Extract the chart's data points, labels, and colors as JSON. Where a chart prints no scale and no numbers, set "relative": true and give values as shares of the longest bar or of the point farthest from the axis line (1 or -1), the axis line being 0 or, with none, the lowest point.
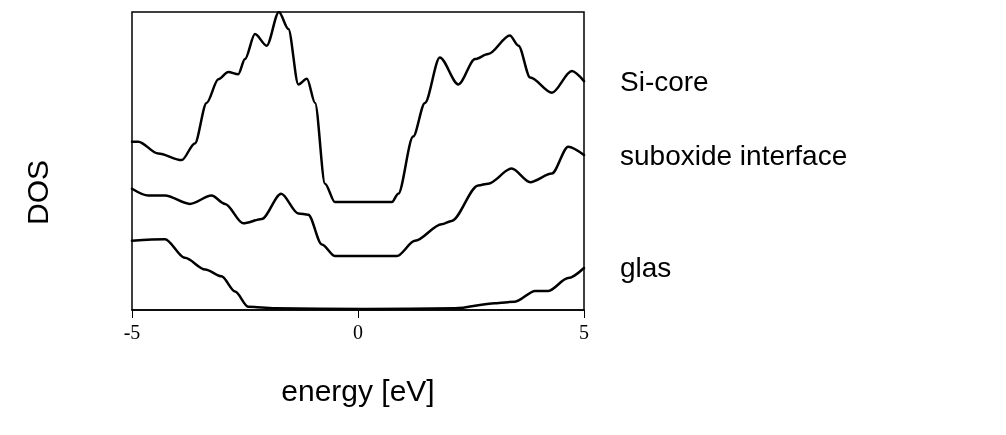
{
  "chart_data": {
    "type": "line",
    "relative": true,
    "xlabel": "energy [eV]",
    "ylabel": "DOS",
    "xlim": [
      -5,
      5
    ],
    "xticks": [
      -5,
      0,
      5
    ],
    "marker": "none",
    "line_style": "solid",
    "series": [
      {
        "name": "Si-core",
        "color": "#000000",
        "x": [
          -5,
          -4.86,
          -4.42,
          -3.9,
          -3.61,
          -3.35,
          -3.09,
          -2.87,
          -2.65,
          -2.5,
          -2.28,
          -2.02,
          -1.75,
          -1.54,
          -1.32,
          -1.13,
          -0.95,
          -0.73,
          -0.51,
          0.15,
          0.75,
          0.89,
          1.22,
          1.48,
          1.81,
          2.22,
          2.59,
          2.88,
          3.36,
          3.55,
          3.81,
          4.29,
          4.73,
          5
        ],
        "values": [
          0.565,
          0.565,
          0.525,
          0.503,
          0.559,
          0.695,
          0.774,
          0.799,
          0.791,
          0.842,
          0.926,
          0.887,
          1,
          0.943,
          0.757,
          0.776,
          0.695,
          0.424,
          0.362,
          0.362,
          0.362,
          0.39,
          0.582,
          0.695,
          0.847,
          0.757,
          0.842,
          0.859,
          0.921,
          0.887,
          0.78,
          0.729,
          0.802,
          0.768
        ]
      },
      {
        "name": "suboxide interface",
        "color": "#000000",
        "x": [
          -5,
          -4.64,
          -4.27,
          -3.72,
          -3.24,
          -2.94,
          -2.54,
          -2.13,
          -1.7,
          -1.32,
          -1.1,
          -0.8,
          -0.51,
          0.15,
          0.86,
          1.26,
          1.85,
          2.07,
          2.66,
          2.88,
          3.4,
          3.81,
          4.29,
          4.65,
          5
        ],
        "values": [
          0.407,
          0.384,
          0.384,
          0.356,
          0.384,
          0.356,
          0.291,
          0.305,
          0.39,
          0.324,
          0.32,
          0.22,
          0.181,
          0.181,
          0.181,
          0.232,
          0.288,
          0.299,
          0.418,
          0.424,
          0.475,
          0.429,
          0.458,
          0.548,
          0.52
        ]
      },
      {
        "name": "glas",
        "color": "#000000",
        "x": [
          -5,
          -4.27,
          -3.83,
          -3.38,
          -3.02,
          -2.72,
          -2.43,
          -1.84,
          0.15,
          2.15,
          3.03,
          3.47,
          3.92,
          4.21,
          4.65,
          5
        ],
        "values": [
          0.232,
          0.237,
          0.175,
          0.136,
          0.113,
          0.062,
          0.011,
          0.006,
          0.003,
          0.006,
          0.023,
          0.028,
          0.064,
          0.064,
          0.107,
          0.141
        ]
      }
    ]
  }
}
